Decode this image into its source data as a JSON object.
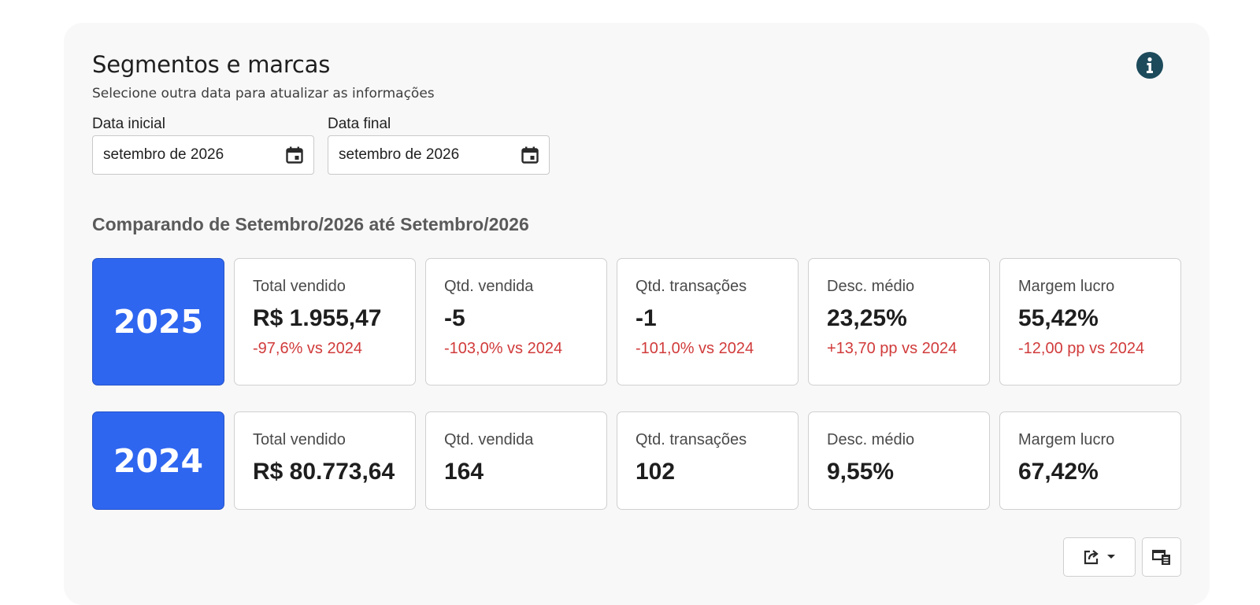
{
  "header": {
    "title": "Segmentos e marcas",
    "subtitle": "Selecione outra data para atualizar as informações"
  },
  "filters": {
    "start": {
      "label": "Data inicial",
      "value": "setembro de 2026"
    },
    "end": {
      "label": "Data final",
      "value": "setembro de 2026"
    }
  },
  "comparison_title": "Comparando de Setembro/2026 até Setembro/2026",
  "rows": [
    {
      "year": "2025",
      "metrics": [
        {
          "label": "Total vendido",
          "value": "R$ 1.955,47",
          "delta": "-97,6% vs 2024"
        },
        {
          "label": "Qtd. vendida",
          "value": "-5",
          "delta": "-103,0% vs 2024"
        },
        {
          "label": "Qtd. transações",
          "value": "-1",
          "delta": "-101,0% vs 2024"
        },
        {
          "label": "Desc. médio",
          "value": "23,25%",
          "delta": "+13,70 pp vs 2024"
        },
        {
          "label": "Margem lucro",
          "value": "55,42%",
          "delta": "-12,00 pp vs 2024"
        }
      ]
    },
    {
      "year": "2024",
      "metrics": [
        {
          "label": "Total vendido",
          "value": "R$ 80.773,64"
        },
        {
          "label": "Qtd. vendida",
          "value": "164"
        },
        {
          "label": "Qtd. transações",
          "value": "102"
        },
        {
          "label": "Desc. médio",
          "value": "9,55%"
        },
        {
          "label": "Margem lucro",
          "value": "67,42%"
        }
      ]
    }
  ],
  "icons": {
    "info": "info-icon",
    "calendar": "calendar-icon",
    "export": "export-icon",
    "dropdown": "caret-down-icon",
    "layout": "layout-icon"
  },
  "colors": {
    "year_bg": "#2f66f0",
    "negative": "#d13b3b",
    "info_icon": "#1d4b5c"
  }
}
